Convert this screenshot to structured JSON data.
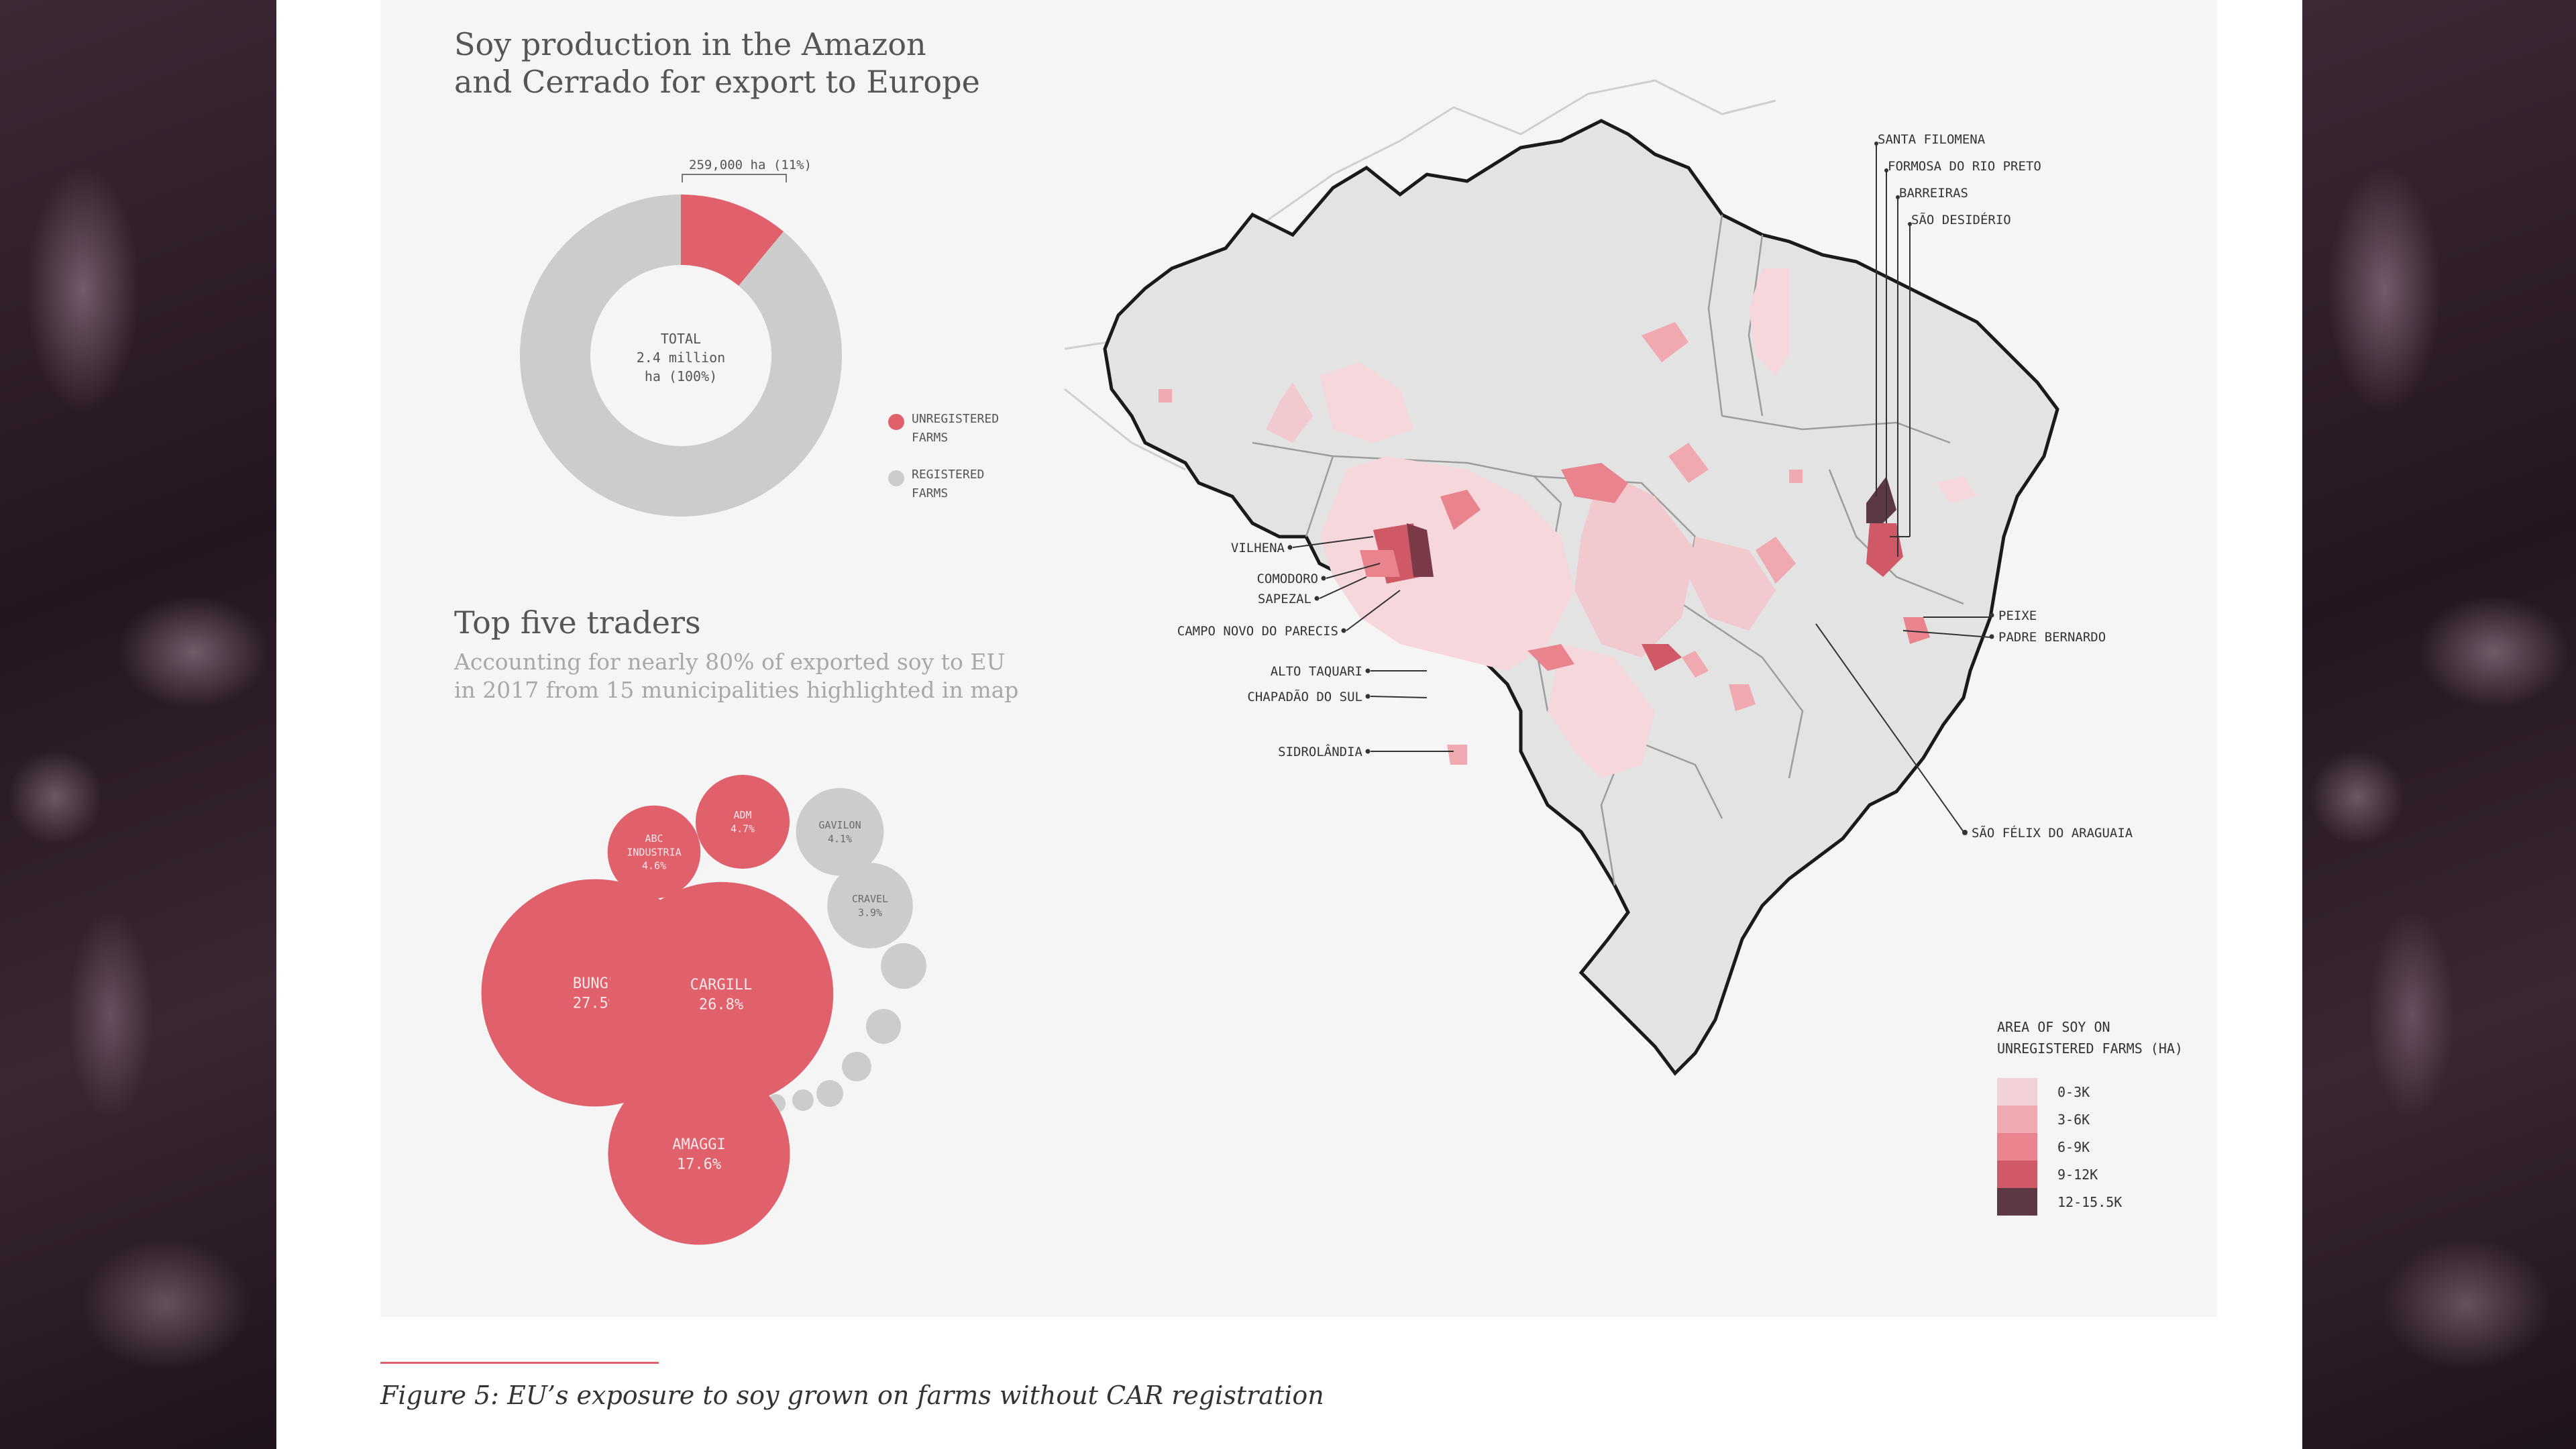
{
  "colors": {
    "unregistered": "#e0606b",
    "registered": "#cccccc",
    "panel": "#f5f5f5",
    "map_fill": "#e3e3e3",
    "legend_scale": [
      "#f2d2d6",
      "#f1a9b1",
      "#e9838e",
      "#cf5966",
      "#5c3845"
    ]
  },
  "chart_data": [
    {
      "type": "pie",
      "title": "Soy production in the Amazon\nand Cerrado for export to Europe",
      "center_label": [
        "TOTAL",
        "2.4 million",
        "ha (100%)"
      ],
      "callout": "259,000 ha (11%)",
      "slices": [
        {
          "name": "UNREGISTERED\nFARMS",
          "value": 11
        },
        {
          "name": "REGISTERED\nFARMS",
          "value": 89
        }
      ]
    },
    {
      "type": "scatter",
      "title": "Top five traders",
      "subtitle": "Accounting for nearly 80% of exported soy to EU\nin 2017 from 15 municipalities highlighted in map",
      "bubbles": [
        {
          "name": "BUNGE",
          "value": 27.5,
          "label": "27.5%",
          "highlight": true
        },
        {
          "name": "CARGILL",
          "value": 26.8,
          "label": "26.8%",
          "highlight": true
        },
        {
          "name": "AMAGGI",
          "value": 17.6,
          "label": "17.6%",
          "highlight": true
        },
        {
          "name": "ADM",
          "value": 4.7,
          "label": "4.7%",
          "highlight": true
        },
        {
          "name": "ABC\nINDUSTRIA",
          "value": 4.6,
          "label": "4.6%",
          "highlight": true
        },
        {
          "name": "GAVILON",
          "value": 4.1,
          "label": "4.1%",
          "highlight": false
        },
        {
          "name": "CRAVEL",
          "value": 3.9,
          "label": "3.9%",
          "highlight": false
        }
      ]
    }
  ],
  "map": {
    "municipalities_right": [
      "SANTA FILOMENA",
      "FORMOSA DO RIO PRETO",
      "BARREIRAS",
      "SÃO DESIDÉRIO"
    ],
    "municipalities_left": [
      "VILHENA",
      "COMODORO",
      "SAPEZAL",
      "CAMPO NOVO DO PARECIS",
      "ALTO TAQUARI",
      "CHAPADÃO DO SUL",
      "SIDROLÂNDIA"
    ],
    "municipalities_east": [
      "PEIXE",
      "PADRE BERNARDO"
    ],
    "municipality_bottom": "SÃO FÉLIX DO ARAGUAIA",
    "legend_title": "AREA OF SOY ON\nUNREGISTERED FARMS (HA)",
    "legend": [
      "0-3K",
      "3-6K",
      "6-9K",
      "9-12K",
      "12-15.5K"
    ]
  },
  "caption": "Figure 5: EU’s exposure to soy grown on farms without CAR registration"
}
